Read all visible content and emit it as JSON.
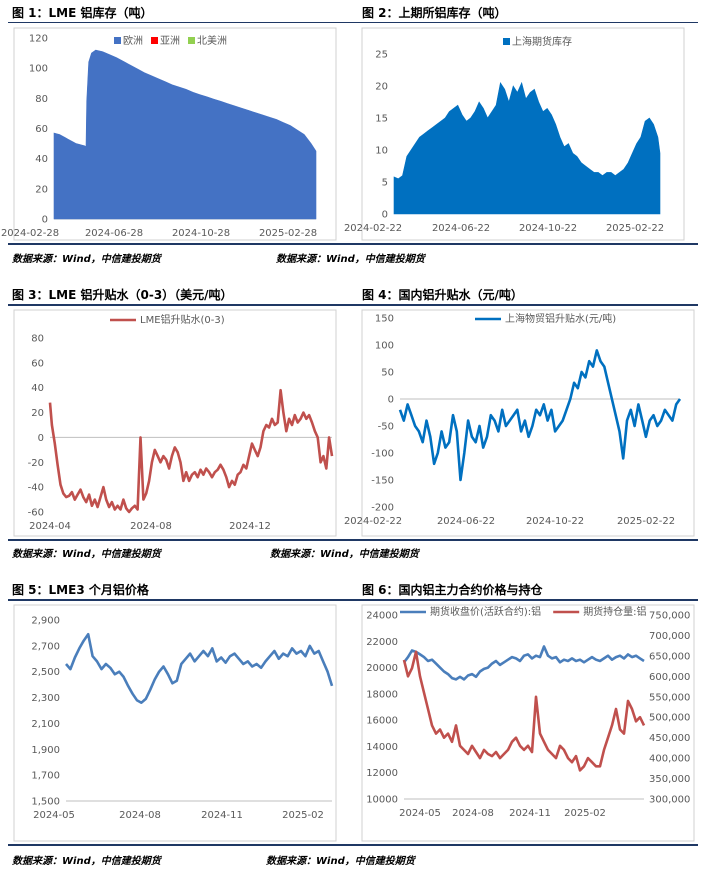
{
  "sources": [
    "数据来源：Wind，中信建投期货",
    "数据来源：Wind，中信建投期货",
    "数据来源：Wind，中信建投期货",
    "数据来源：Wind，中信建投期货",
    "数据来源：Wind，中信建投期货",
    "数据来源：Wind，中信建投期货"
  ],
  "chart_data": [
    {
      "id": "fig1",
      "type": "area",
      "title": "图 1：LME 铝库存（吨）",
      "legend": [
        "欧洲",
        "亚洲",
        "北美洲"
      ],
      "colors": [
        "#4472c4",
        "#ff0000",
        "#92d050"
      ],
      "xticks": [
        "2024-02-28",
        "2024-06-28",
        "2024-10-28",
        "2025-02-28"
      ],
      "yticks": [
        "0",
        "20",
        "40",
        "60",
        "80",
        "100",
        "120"
      ],
      "ylim": [
        0,
        120
      ],
      "x": [
        0,
        4,
        8,
        12,
        16,
        20,
        24,
        28,
        32,
        36,
        40,
        44,
        46,
        47,
        50,
        54,
        60,
        70,
        80,
        90,
        100,
        110,
        120,
        130,
        140,
        150,
        160,
        170,
        180,
        190,
        200,
        210,
        220,
        230,
        240,
        250,
        260,
        270,
        280,
        290,
        300,
        310,
        320,
        330,
        340,
        350,
        360,
        370,
        377
      ],
      "values": [
        57,
        56.5,
        56,
        55,
        54,
        53,
        52,
        51,
        50,
        49.5,
        49,
        48.5,
        48,
        78,
        104,
        110,
        112,
        111,
        109,
        107,
        104.5,
        102,
        99.5,
        97,
        95,
        93,
        91,
        89,
        87.5,
        86,
        84,
        82.5,
        81,
        79.5,
        78,
        76.5,
        75,
        73.5,
        72,
        70.5,
        69,
        67.5,
        66,
        64,
        62,
        59,
        56,
        50,
        45
      ]
    },
    {
      "id": "fig2",
      "type": "area",
      "title": "图 2：上期所铝库存（吨）",
      "legend": [
        "上海期货库存"
      ],
      "colors": [
        "#0070c0"
      ],
      "xticks": [
        "2024-02-22",
        "2024-06-22",
        "2024-10-22",
        "2025-02-22"
      ],
      "yticks": [
        "0",
        "5",
        "10",
        "15",
        "20",
        "25"
      ],
      "ylim": [
        0,
        25
      ],
      "x": [
        0,
        6,
        12,
        18,
        24,
        30,
        36,
        42,
        48,
        54,
        60,
        66,
        72,
        78,
        84,
        90,
        96,
        102,
        108,
        114,
        120,
        126,
        132,
        138,
        144,
        150,
        156,
        162,
        168,
        174,
        180,
        186,
        192,
        198,
        204,
        210,
        216,
        222,
        228,
        234,
        240,
        246,
        252,
        258,
        264,
        270,
        276,
        282,
        288,
        294,
        300,
        306,
        312,
        318,
        324,
        330,
        336,
        342,
        348,
        354,
        360,
        366,
        372,
        375
      ],
      "values": [
        5.8,
        5.5,
        6,
        9,
        10,
        11,
        12,
        12.5,
        13,
        13.5,
        14,
        14.5,
        15,
        16,
        16.5,
        17,
        15.5,
        14.5,
        15,
        16,
        17.5,
        16.5,
        15,
        16,
        17,
        20.5,
        19.5,
        17.5,
        20,
        19,
        20.5,
        18,
        19,
        19.5,
        17.5,
        16,
        16.5,
        15.5,
        14,
        12,
        10.5,
        11,
        9.5,
        9,
        8,
        7.5,
        7,
        6.5,
        6.5,
        6,
        6.5,
        6.5,
        6,
        6.5,
        7,
        8,
        9.5,
        11,
        12,
        14.5,
        15,
        14,
        12,
        9.5
      ]
    },
    {
      "id": "fig3",
      "type": "line",
      "title": "图 3：LME 铝升贴水（0-3）（美元/吨）",
      "legend": [
        "LME铝升贴水(0-3)"
      ],
      "colors": [
        "#c0504d"
      ],
      "xticks": [
        "2024-04",
        "2024-08",
        "2024-12"
      ],
      "yticks": [
        "-60",
        "-40",
        "-20",
        "0",
        "20",
        "40",
        "60",
        "80"
      ],
      "ylim": [
        -60,
        80
      ],
      "x": [
        0,
        2,
        5,
        8,
        11,
        14,
        17,
        20,
        23,
        26,
        29,
        32,
        35,
        38,
        41,
        44,
        47,
        50,
        53,
        56,
        59,
        62,
        65,
        68,
        71,
        74,
        77,
        80,
        83,
        86,
        89,
        92,
        95,
        98,
        101,
        104,
        107,
        110,
        113,
        116,
        119,
        122,
        125,
        128,
        131,
        134,
        137,
        140,
        143,
        146,
        149,
        152,
        155,
        158,
        161,
        164,
        167,
        170,
        173,
        176,
        179,
        182,
        185,
        188,
        191,
        194,
        197,
        200,
        203,
        206,
        209,
        212,
        215,
        218,
        221,
        224,
        227,
        230,
        233,
        236,
        239,
        242,
        245,
        248,
        251,
        254,
        257,
        260,
        263,
        266,
        269,
        272,
        275,
        278,
        281,
        284,
        287,
        290,
        293,
        296
      ],
      "values": [
        28,
        10,
        -5,
        -22,
        -38,
        -45,
        -48,
        -47,
        -44,
        -50,
        -46,
        -42,
        -48,
        -52,
        -46,
        -55,
        -50,
        -56,
        -48,
        -40,
        -50,
        -56,
        -52,
        -58,
        -55,
        -58,
        -50,
        -57,
        -60,
        -57,
        -55,
        -58,
        0,
        -50,
        -45,
        -35,
        -20,
        -10,
        -15,
        -20,
        -15,
        -18,
        -25,
        -15,
        -8,
        -12,
        -20,
        -35,
        -28,
        -35,
        -30,
        -28,
        -32,
        -26,
        -30,
        -25,
        -28,
        -32,
        -28,
        -26,
        -22,
        -26,
        -32,
        -40,
        -35,
        -38,
        -30,
        -28,
        -22,
        -25,
        -15,
        -5,
        -10,
        -15,
        -8,
        5,
        10,
        8,
        15,
        10,
        12,
        38,
        20,
        5,
        15,
        10,
        18,
        12,
        15,
        20,
        15,
        18,
        12,
        5,
        0,
        -20,
        -15,
        -25,
        0,
        -15
      ]
    },
    {
      "id": "fig4",
      "type": "line",
      "title": "图 4：国内铝升贴水（元/吨）",
      "legend": [
        "上海物贸铝升贴水(元/吨)"
      ],
      "colors": [
        "#0070c0"
      ],
      "xticks": [
        "2024-02-22",
        "2024-06-22",
        "2024-10-22",
        "2025-02-22"
      ],
      "yticks": [
        "-200",
        "-150",
        "-100",
        "-50",
        "0",
        "50",
        "100",
        "150"
      ],
      "ylim": [
        -200,
        150
      ],
      "x": [
        0,
        5,
        10,
        15,
        20,
        25,
        30,
        35,
        40,
        45,
        50,
        55,
        60,
        65,
        70,
        75,
        80,
        85,
        90,
        95,
        100,
        105,
        110,
        115,
        120,
        125,
        130,
        135,
        140,
        145,
        150,
        155,
        160,
        165,
        170,
        175,
        180,
        185,
        190,
        195,
        200,
        205,
        210,
        215,
        220,
        225,
        230,
        235,
        240,
        245,
        250,
        255,
        260,
        265,
        270,
        275,
        280,
        285,
        290,
        295,
        300,
        305,
        310,
        315,
        320,
        325,
        330,
        335,
        340,
        345,
        350,
        355,
        360,
        365,
        370
      ],
      "values": [
        -20,
        -40,
        -10,
        -30,
        -50,
        -60,
        -80,
        -40,
        -70,
        -120,
        -100,
        -60,
        -90,
        -80,
        -30,
        -60,
        -150,
        -100,
        -40,
        -70,
        -80,
        -50,
        -90,
        -70,
        -30,
        -40,
        -60,
        -20,
        -50,
        -40,
        -30,
        -20,
        -60,
        -40,
        -70,
        -50,
        -20,
        -30,
        -10,
        -40,
        -20,
        -60,
        -50,
        -40,
        -20,
        0,
        30,
        20,
        50,
        40,
        70,
        60,
        90,
        70,
        60,
        30,
        0,
        -30,
        -60,
        -110,
        -40,
        -20,
        -50,
        -10,
        -40,
        -70,
        -40,
        -30,
        -50,
        -40,
        -20,
        -30,
        -40,
        -10,
        0
      ]
    },
    {
      "id": "fig5",
      "type": "line",
      "title": "图 5：LME3 个月铝价格",
      "legend": [],
      "colors": [
        "#4a7ebb"
      ],
      "xticks": [
        "2024-05",
        "2024-08",
        "2024-11",
        "2025-02"
      ],
      "yticks": [
        "1,500",
        "1,700",
        "1,900",
        "2,100",
        "2,300",
        "2,500",
        "2,700",
        "2,900"
      ],
      "ylim": [
        1500,
        2900
      ],
      "x": [
        0,
        5,
        10,
        15,
        20,
        25,
        30,
        35,
        40,
        45,
        50,
        55,
        60,
        65,
        70,
        75,
        80,
        85,
        90,
        95,
        100,
        105,
        110,
        115,
        120,
        125,
        130,
        135,
        140,
        145,
        150,
        155,
        160,
        165,
        170,
        175,
        180,
        185,
        190,
        195,
        200,
        205,
        210,
        215,
        220,
        225,
        230,
        235,
        240,
        245,
        250,
        255,
        260,
        265,
        270,
        275,
        280,
        285,
        290,
        295,
        300
      ],
      "values": [
        2560,
        2520,
        2610,
        2680,
        2740,
        2790,
        2620,
        2580,
        2520,
        2560,
        2530,
        2480,
        2500,
        2460,
        2390,
        2330,
        2280,
        2260,
        2290,
        2360,
        2440,
        2500,
        2540,
        2480,
        2410,
        2430,
        2560,
        2600,
        2640,
        2580,
        2620,
        2660,
        2620,
        2680,
        2580,
        2610,
        2570,
        2620,
        2640,
        2600,
        2560,
        2580,
        2540,
        2560,
        2530,
        2580,
        2620,
        2660,
        2600,
        2640,
        2620,
        2680,
        2640,
        2660,
        2620,
        2700,
        2640,
        2660,
        2580,
        2500,
        2390
      ]
    },
    {
      "id": "fig6",
      "type": "line",
      "title": "图 6：国内铝主力合约价格与持仓",
      "legend": [
        "期货收盘价(活跃合约):铝",
        "期货持仓量:铝"
      ],
      "colors": [
        "#4a7ebb",
        "#c0504d"
      ],
      "xticks": [
        "2024-05",
        "2024-08",
        "2024-11",
        "2025-02"
      ],
      "yticks": [
        "10000",
        "12000",
        "14000",
        "16000",
        "18000",
        "20000",
        "22000",
        "24000"
      ],
      "ylim": [
        10000,
        24000
      ],
      "y2ticks": [
        "300,000",
        "350,000",
        "400,000",
        "450,000",
        "500,000",
        "550,000",
        "600,000",
        "650,000",
        "700,000",
        "750,000"
      ],
      "y2lim": [
        300000,
        750000
      ],
      "x": [
        0,
        5,
        10,
        15,
        20,
        25,
        30,
        35,
        40,
        45,
        50,
        55,
        60,
        65,
        70,
        75,
        80,
        85,
        90,
        95,
        100,
        105,
        110,
        115,
        120,
        125,
        130,
        135,
        140,
        145,
        150,
        155,
        160,
        165,
        170,
        175,
        180,
        185,
        190,
        195,
        200,
        205,
        210,
        215,
        220,
        225,
        230,
        235,
        240,
        245,
        250,
        255,
        260,
        265,
        270,
        275,
        280,
        285,
        290,
        295,
        300
      ],
      "series": [
        {
          "name": "期货收盘价(活跃合约):铝",
          "values": [
            20400,
            20800,
            21300,
            21200,
            21000,
            20800,
            20500,
            20600,
            20300,
            20000,
            19700,
            19500,
            19200,
            19100,
            19300,
            19100,
            19400,
            19500,
            19300,
            19700,
            19900,
            20000,
            20300,
            20500,
            20200,
            20400,
            20600,
            20800,
            20700,
            20500,
            20900,
            21000,
            20700,
            20900,
            20800,
            21600,
            20900,
            20700,
            20800,
            20400,
            20600,
            20500,
            20700,
            20500,
            20600,
            20400,
            20600,
            20800,
            20600,
            20500,
            20700,
            20900,
            20600,
            20800,
            20900,
            20700,
            21000,
            20800,
            20900,
            20700,
            20500
          ]
        },
        {
          "name": "期货持仓量:铝",
          "values": [
            640000,
            600000,
            620000,
            660000,
            600000,
            560000,
            520000,
            480000,
            460000,
            470000,
            450000,
            460000,
            440000,
            480000,
            430000,
            420000,
            410000,
            430000,
            415000,
            400000,
            420000,
            410000,
            405000,
            415000,
            400000,
            410000,
            420000,
            440000,
            450000,
            430000,
            420000,
            430000,
            415000,
            550000,
            460000,
            440000,
            420000,
            410000,
            400000,
            430000,
            420000,
            400000,
            390000,
            405000,
            370000,
            380000,
            400000,
            390000,
            380000,
            380000,
            420000,
            450000,
            480000,
            520000,
            470000,
            460000,
            540000,
            520000,
            490000,
            500000,
            480000
          ]
        }
      ]
    }
  ]
}
